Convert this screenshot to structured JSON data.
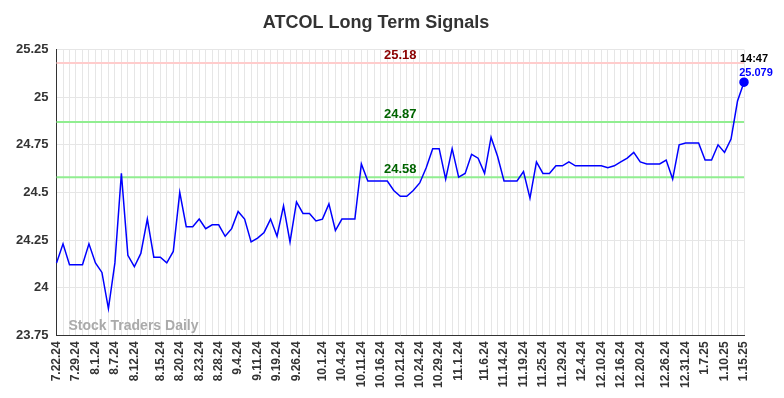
{
  "chart_data": {
    "type": "line",
    "title": "ATCOL Long Term Signals",
    "watermark": "Stock Traders Daily",
    "color": "#0000ff",
    "grid": true,
    "ylim": [
      23.75,
      25.25
    ],
    "yticks": [
      23.75,
      24,
      24.25,
      24.5,
      24.75,
      25,
      25.25
    ],
    "reference_lines": [
      {
        "value": 25.18,
        "label": "25.18",
        "color": "#ffcccc"
      },
      {
        "value": 24.87,
        "label": "24.87",
        "color": "#90ee90"
      },
      {
        "value": 24.58,
        "label": "24.58",
        "color": "#90ee90"
      }
    ],
    "last_point": {
      "time": "14:47",
      "label": "25.079"
    },
    "categories": [
      "7.22.24",
      null,
      null,
      "7.29.24",
      null,
      null,
      "8.1.24",
      null,
      null,
      "8.7.24",
      null,
      null,
      "8.12.24",
      null,
      null,
      null,
      "8.15.24",
      null,
      null,
      "8.20.24",
      null,
      null,
      "8.23.24",
      null,
      null,
      "8.28.24",
      null,
      null,
      "9.4.24",
      null,
      null,
      "9.11.24",
      null,
      null,
      "9.19.24",
      null,
      null,
      "9.26.24",
      null,
      null,
      null,
      "10.1.24",
      null,
      null,
      "10.4.24",
      null,
      null,
      "10.11.24",
      null,
      null,
      "10.16.24",
      null,
      null,
      "10.21.24",
      null,
      null,
      "10.24.24",
      null,
      null,
      "10.29.24",
      null,
      null,
      "11.1.24",
      null,
      null,
      null,
      "11.6.24",
      null,
      null,
      "11.14.24",
      null,
      null,
      "11.19.24",
      null,
      null,
      "11.25.24",
      null,
      null,
      "11.29.24",
      null,
      null,
      "12.4.24",
      null,
      null,
      "12.10.24",
      null,
      null,
      "12.16.24",
      null,
      null,
      "12.20.24",
      null,
      null,
      null,
      "12.26.24",
      null,
      null,
      "12.31.24",
      null,
      null,
      "1.7.25",
      null,
      null,
      "1.10.25",
      null,
      null,
      "1.15.25"
    ],
    "values": [
      24.13,
      24.23,
      24.12,
      24.12,
      24.12,
      24.23,
      24.13,
      24.08,
      23.89,
      24.13,
      24.6,
      24.17,
      24.11,
      24.18,
      24.36,
      24.16,
      24.16,
      24.13,
      24.19,
      24.5,
      24.32,
      24.32,
      24.36,
      24.31,
      24.33,
      24.33,
      24.27,
      24.31,
      24.4,
      24.36,
      24.24,
      24.26,
      24.29,
      24.36,
      24.27,
      24.43,
      24.24,
      24.45,
      24.39,
      24.39,
      24.35,
      24.36,
      24.44,
      24.3,
      24.36,
      24.36,
      24.36,
      24.65,
      24.56,
      24.56,
      24.56,
      24.56,
      24.51,
      24.48,
      24.48,
      24.51,
      24.55,
      24.63,
      24.73,
      24.73,
      24.57,
      24.73,
      24.58,
      24.6,
      24.7,
      24.68,
      24.6,
      24.79,
      24.69,
      24.56,
      24.56,
      24.56,
      24.61,
      24.47,
      24.66,
      24.6,
      24.6,
      24.64,
      24.64,
      24.66,
      24.64,
      24.64,
      24.64,
      24.64,
      24.64,
      24.63,
      24.64,
      24.66,
      24.68,
      24.71,
      24.66,
      24.65,
      24.65,
      24.65,
      24.67,
      24.57,
      24.75,
      24.76,
      24.76,
      24.76,
      24.67,
      24.67,
      24.75,
      24.71,
      24.78,
      24.98,
      25.079
    ]
  }
}
